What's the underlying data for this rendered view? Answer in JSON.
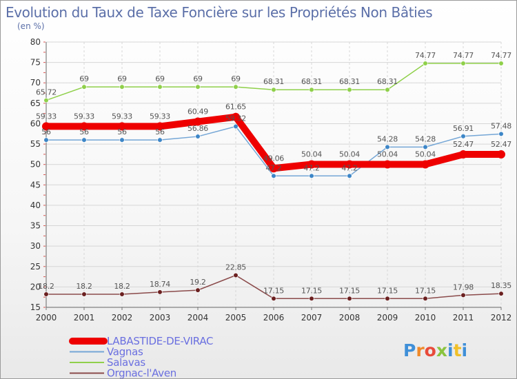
{
  "chart_data": {
    "type": "line",
    "title": "Evolution du Taux de Taxe Foncière sur les Propriétés Non Bâties",
    "ylabel": "(en %)",
    "xlabel": "",
    "ylim": [
      15,
      80
    ],
    "yticks": [
      15,
      20,
      25,
      30,
      35,
      40,
      45,
      50,
      55,
      60,
      65,
      70,
      75,
      80
    ],
    "x": [
      "2000",
      "2001",
      "2002",
      "2003",
      "2004",
      "2005",
      "2006",
      "2007",
      "2008",
      "2009",
      "2010",
      "2011",
      "2012"
    ],
    "grid": true,
    "legend_position": "bottom-left",
    "series": [
      {
        "key": "salavas",
        "name": "Salavas",
        "color": "#8fd04a",
        "values": [
          65.72,
          69,
          69,
          69,
          69,
          69,
          68.31,
          68.31,
          68.31,
          68.31,
          74.77,
          74.77,
          74.77
        ],
        "labels": [
          "65.72",
          "69",
          "69",
          "69",
          "69",
          "69",
          "68.31",
          "68.31",
          "68.31",
          "68.31",
          "74.77",
          "74.77",
          "74.77"
        ]
      },
      {
        "key": "vagnas",
        "name": "Vagnas",
        "color": "#74a6d6",
        "marker_color": "#3d86c7",
        "values": [
          56,
          56,
          56,
          56,
          56.86,
          59.32,
          47.2,
          47.2,
          47.2,
          54.28,
          54.28,
          56.91,
          57.48
        ],
        "labels": [
          "56",
          "56",
          "56",
          "56",
          "56.86",
          "59.32",
          "47.2",
          "47.2",
          "47.2",
          "54.28",
          "54.28",
          "56.91",
          "57.48"
        ]
      },
      {
        "key": "labastide",
        "name": "LABASTIDE-DE-VIRAC",
        "color": "#ee0000",
        "values": [
          59.33,
          59.33,
          59.33,
          59.33,
          60.49,
          61.65,
          49.06,
          50.04,
          50.04,
          50.04,
          50.04,
          52.47,
          52.47
        ],
        "labels": [
          "59.33",
          "59.33",
          "59.33",
          "59.33",
          "60.49",
          "61.65",
          "49.06",
          "50.04",
          "50.04",
          "50.04",
          "50.04",
          "52.47",
          "52.47"
        ]
      },
      {
        "key": "orgnac",
        "name": "Orgnac-l'Aven",
        "color": "#8a4a4a",
        "marker_color": "#6b2020",
        "values": [
          18.2,
          18.2,
          18.2,
          18.74,
          19.2,
          22.85,
          17.15,
          17.15,
          17.15,
          17.15,
          17.15,
          17.98,
          18.35
        ],
        "labels": [
          "18.2",
          "18.2",
          "18.2",
          "18.74",
          "19.2",
          "22.85",
          "17.15",
          "17.15",
          "17.15",
          "17.15",
          "17.15",
          "17.98",
          "18.35"
        ]
      }
    ],
    "legend_order": [
      "labastide",
      "vagnas",
      "salavas",
      "orgnac"
    ]
  },
  "watermark": "Proxiti",
  "watermark_colors": [
    "#3f8fd8",
    "#f08a2a",
    "#e84a3a",
    "#8ac43f",
    "#3f8fd8",
    "#f0c02a",
    "#3f8fd8"
  ]
}
